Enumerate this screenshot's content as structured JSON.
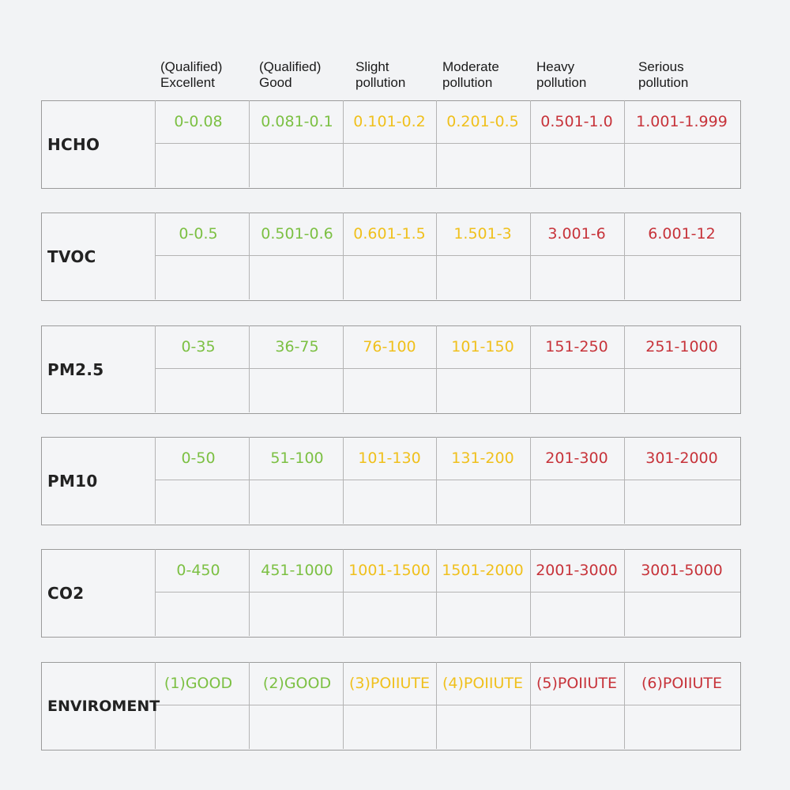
{
  "colors": {
    "green": "#7cc043",
    "yellow": "#f0c01c",
    "red": "#c7333a"
  },
  "headers": [
    {
      "line1": "(Qualified)",
      "line2": "Excellent"
    },
    {
      "line1": "(Qualified)",
      "line2": "Good"
    },
    {
      "line1": "Slight",
      "line2": "pollution"
    },
    {
      "line1": "Moderate",
      "line2": "pollution"
    },
    {
      "line1": "Heavy",
      "line2": "pollution"
    },
    {
      "line1": "Serious",
      "line2": "pollution"
    }
  ],
  "rows": [
    {
      "label": "HCHO",
      "values": [
        "0-0.08",
        "0.081-0.1",
        "0.101-0.2",
        "0.201-0.5",
        "0.501-1.0",
        "1.001-1.999"
      ]
    },
    {
      "label": "TVOC",
      "values": [
        "0-0.5",
        "0.501-0.6",
        "0.601-1.5",
        "1.501-3",
        "3.001-6",
        "6.001-12"
      ]
    },
    {
      "label": "PM2.5",
      "values": [
        "0-35",
        "36-75",
        "76-100",
        "101-150",
        "151-250",
        "251-1000"
      ]
    },
    {
      "label": "PM10",
      "values": [
        "0-50",
        "51-100",
        "101-130",
        "131-200",
        "201-300",
        "301-2000"
      ]
    },
    {
      "label": "CO2",
      "values": [
        "0-450",
        "451-1000",
        "1001-1500",
        "1501-2000",
        "2001-3000",
        "3001-5000"
      ]
    },
    {
      "label": "ENVIROMENT",
      "values": [
        "(1)GOOD",
        "(2)GOOD",
        "(3)POIIUTE",
        "(4)POIIUTE",
        "(5)POIIUTE",
        "(6)POIIUTE"
      ]
    }
  ]
}
